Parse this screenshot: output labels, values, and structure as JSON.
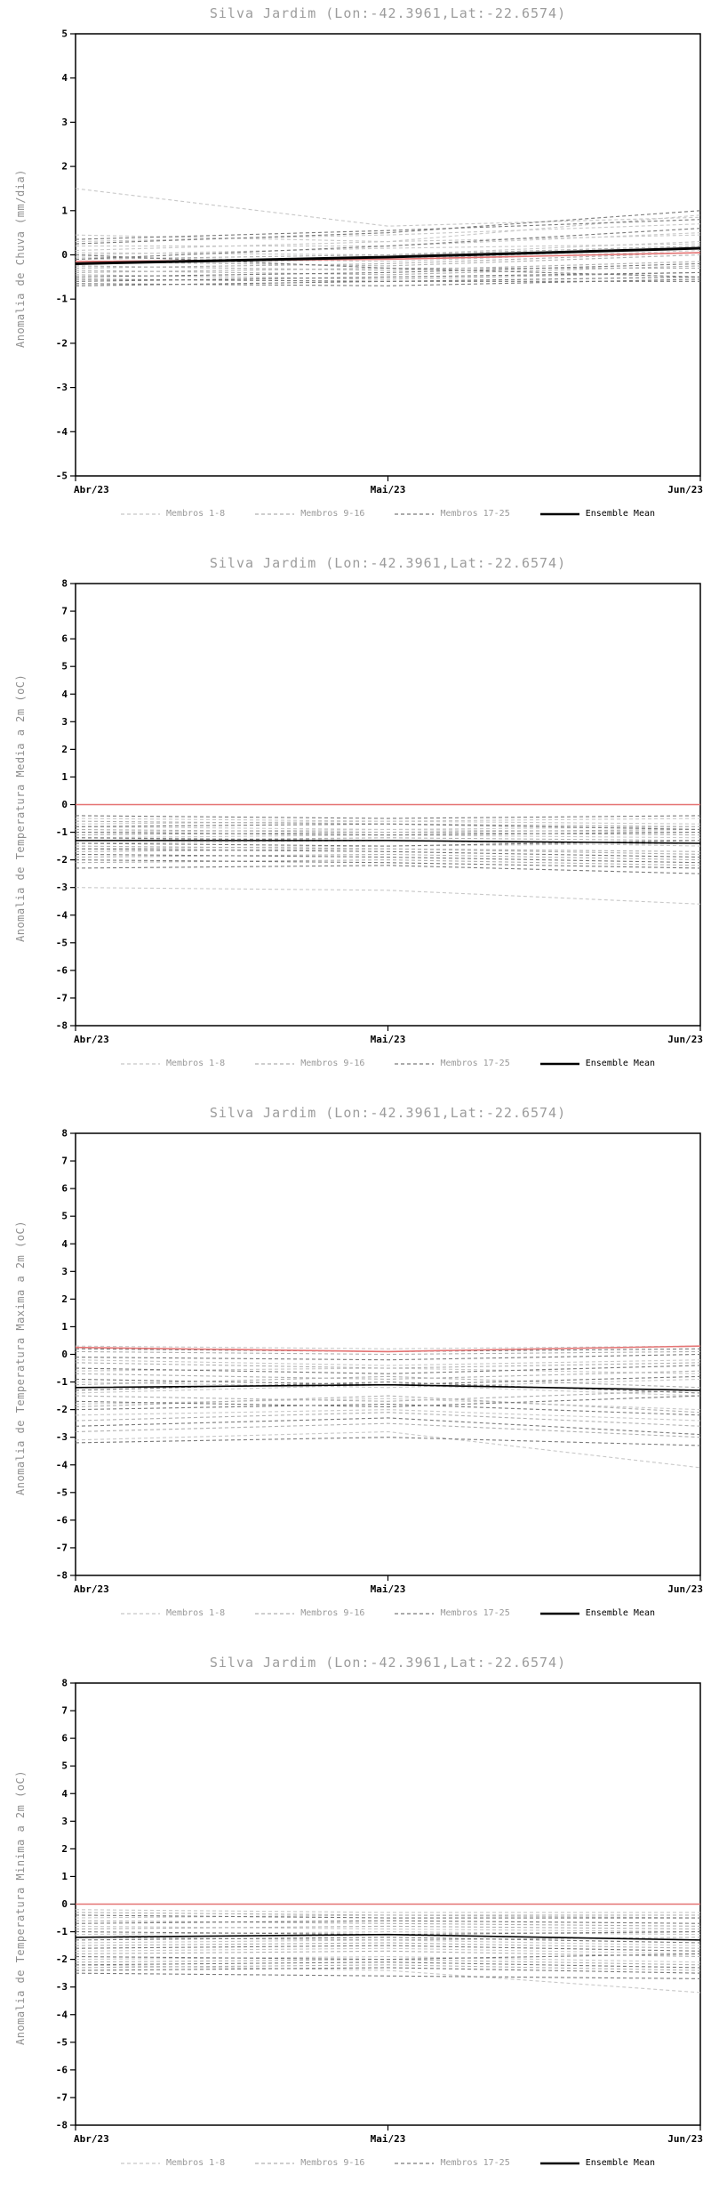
{
  "colors": {
    "title": "#9c9c9c",
    "ylabel": "#8f8f8f",
    "axis": "#000000",
    "group1": "#c8c8c8",
    "group2": "#b0b0b0",
    "group3": "#7a7a7a",
    "mean": "#000000",
    "red": "#e57373",
    "legend_member_text": "#9a9a9a",
    "legend_mean_text": "#000000"
  },
  "legend_styles": [
    {
      "color_key": "group1",
      "dashed": true
    },
    {
      "color_key": "group2",
      "dashed": true
    },
    {
      "color_key": "group3",
      "dashed": true
    },
    {
      "color_key": "mean",
      "dashed": false
    }
  ],
  "chart_data": [
    {
      "type": "line",
      "title": "Silva Jardim (Lon:-42.3961,Lat:-22.6574)",
      "ylabel": "Anomalia de Chuva (mm/dia)",
      "xlabel": "",
      "ylim": [
        -5,
        5
      ],
      "ytick_step": 1,
      "x_labels": [
        "Abr/23",
        "Mai/23",
        "Jun/23"
      ],
      "legend": [
        "Membros 1-8",
        "Membros 9-16",
        "Membros 17-25",
        "Ensemble Mean"
      ],
      "legend_position": "bottom",
      "grid": false,
      "mean_width": 3,
      "series": {
        "membros_1_8": [
          [
            1.5,
            0.65,
            0.85
          ],
          [
            0.45,
            0.3,
            0.9
          ],
          [
            0.3,
            0.45,
            0.7
          ],
          [
            0.2,
            0.2,
            0.5
          ],
          [
            0.1,
            0.3,
            0.45
          ],
          [
            0.05,
            0.0,
            0.3
          ],
          [
            0.0,
            0.15,
            0.25
          ],
          [
            -0.05,
            -0.15,
            0.1
          ]
        ],
        "membros_9_16": [
          [
            -0.1,
            0.0,
            0.2
          ],
          [
            -0.15,
            -0.25,
            0.0
          ],
          [
            -0.2,
            -0.1,
            0.15
          ],
          [
            -0.25,
            -0.35,
            -0.15
          ],
          [
            -0.3,
            -0.2,
            0.05
          ],
          [
            -0.35,
            -0.45,
            -0.25
          ],
          [
            -0.4,
            -0.3,
            -0.3
          ],
          [
            -0.45,
            -0.55,
            -0.4
          ]
        ],
        "membros_17_25": [
          [
            0.25,
            0.5,
            1.0
          ],
          [
            0.35,
            0.55,
            0.8
          ],
          [
            -0.1,
            0.2,
            0.6
          ],
          [
            -0.5,
            -0.4,
            -0.2
          ],
          [
            -0.55,
            -0.6,
            -0.5
          ],
          [
            -0.6,
            -0.5,
            -0.4
          ],
          [
            -0.65,
            -0.7,
            -0.55
          ],
          [
            -0.7,
            -0.6,
            -0.6
          ],
          [
            0.0,
            -0.3,
            -0.5
          ]
        ],
        "ensemble_mean": [
          -0.2,
          -0.05,
          0.15
        ],
        "reference_red": [
          -0.15,
          -0.1,
          0.05
        ]
      }
    },
    {
      "type": "line",
      "title": "Silva Jardim (Lon:-42.3961,Lat:-22.6574)",
      "ylabel": "Anomalia de Temperatura Media a 2m (oC)",
      "xlabel": "",
      "ylim": [
        -8,
        8
      ],
      "ytick_step": 1,
      "x_labels": [
        "Abr/23",
        "Mai/23",
        "Jun/23"
      ],
      "legend": [
        "Membros 1-8",
        "Membros 9-16",
        "Membros 17-25",
        "Ensemble Mean"
      ],
      "legend_position": "bottom",
      "grid": false,
      "mean_width": 1.6,
      "series": {
        "membros_1_8": [
          [
            -0.5,
            -0.6,
            -0.5
          ],
          [
            -0.7,
            -0.6,
            -0.7
          ],
          [
            -0.8,
            -0.9,
            -1.0
          ],
          [
            -1.0,
            -0.9,
            -0.8
          ],
          [
            -1.2,
            -1.1,
            -1.2
          ],
          [
            -1.4,
            -1.3,
            -1.5
          ],
          [
            -1.6,
            -1.5,
            -1.4
          ],
          [
            -3.0,
            -3.1,
            -3.6
          ]
        ],
        "membros_9_16": [
          [
            -0.6,
            -0.7,
            -0.8
          ],
          [
            -0.9,
            -1.0,
            -0.9
          ],
          [
            -1.1,
            -1.0,
            -1.1
          ],
          [
            -1.3,
            -1.2,
            -1.3
          ],
          [
            -1.5,
            -1.6,
            -1.7
          ],
          [
            -1.7,
            -1.6,
            -1.8
          ],
          [
            -1.9,
            -1.8,
            -2.0
          ],
          [
            -2.1,
            -2.0,
            -2.2
          ]
        ],
        "membros_17_25": [
          [
            -0.4,
            -0.5,
            -0.4
          ],
          [
            -0.8,
            -0.7,
            -0.9
          ],
          [
            -1.0,
            -1.1,
            -1.0
          ],
          [
            -1.2,
            -1.3,
            -1.4
          ],
          [
            -1.4,
            -1.5,
            -1.3
          ],
          [
            -1.6,
            -1.7,
            -1.9
          ],
          [
            -1.8,
            -1.9,
            -2.1
          ],
          [
            -2.0,
            -2.1,
            -2.3
          ],
          [
            -2.3,
            -2.2,
            -2.5
          ]
        ],
        "ensemble_mean": [
          -1.3,
          -1.3,
          -1.4
        ],
        "reference_red": [
          0,
          0,
          0
        ]
      }
    },
    {
      "type": "line",
      "title": "Silva Jardim (Lon:-42.3961,Lat:-22.6574)",
      "ylabel": "Anomalia de Temperatura Maxima a 2m (oC)",
      "xlabel": "",
      "ylim": [
        -8,
        8
      ],
      "ytick_step": 1,
      "x_labels": [
        "Abr/23",
        "Mai/23",
        "Jun/23"
      ],
      "legend": [
        "Membros 1-8",
        "Membros 9-16",
        "Membros 17-25",
        "Ensemble Mean"
      ],
      "legend_position": "bottom",
      "grid": false,
      "mean_width": 1.6,
      "series": {
        "membros_1_8": [
          [
            0.3,
            0.2,
            0.3
          ],
          [
            -0.2,
            -0.4,
            -0.2
          ],
          [
            -0.6,
            -0.5,
            -0.7
          ],
          [
            -1.0,
            -1.2,
            -0.9
          ],
          [
            -1.4,
            -1.1,
            -1.5
          ],
          [
            -1.8,
            -1.6,
            -2.0
          ],
          [
            -2.2,
            -2.0,
            -2.4
          ],
          [
            -3.1,
            -2.8,
            -4.1
          ]
        ],
        "membros_9_16": [
          [
            0.1,
            0.0,
            0.1
          ],
          [
            -0.3,
            -0.5,
            -0.3
          ],
          [
            -0.7,
            -0.9,
            -0.6
          ],
          [
            -1.1,
            -0.8,
            -1.2
          ],
          [
            -1.5,
            -1.7,
            -1.3
          ],
          [
            -1.9,
            -1.5,
            -2.1
          ],
          [
            -2.4,
            -2.1,
            -2.6
          ],
          [
            -2.8,
            -2.5,
            -3.0
          ]
        ],
        "membros_17_25": [
          [
            0.2,
            0.1,
            0.2
          ],
          [
            -0.1,
            -0.2,
            0.0
          ],
          [
            -0.5,
            -0.7,
            -0.4
          ],
          [
            -0.9,
            -1.1,
            -0.8
          ],
          [
            -1.3,
            -1.0,
            -1.4
          ],
          [
            -1.7,
            -1.9,
            -1.5
          ],
          [
            -2.0,
            -1.8,
            -2.2
          ],
          [
            -2.6,
            -2.3,
            -2.9
          ],
          [
            -3.2,
            -3.0,
            -3.3
          ]
        ],
        "ensemble_mean": [
          -1.2,
          -1.1,
          -1.3
        ],
        "reference_red": [
          0.25,
          0.1,
          0.3
        ]
      }
    },
    {
      "type": "line",
      "title": "Silva Jardim (Lon:-42.3961,Lat:-22.6574)",
      "ylabel": "Anomalia de Temperatura Minima a 2m (oC)",
      "xlabel": "",
      "ylim": [
        -8,
        8
      ],
      "ytick_step": 1,
      "x_labels": [
        "Abr/23",
        "Mai/23",
        "Jun/23"
      ],
      "legend": [
        "Membros 1-8",
        "Membros 9-16",
        "Membros 17-25",
        "Ensemble Mean"
      ],
      "legend_position": "bottom",
      "grid": false,
      "mean_width": 1.6,
      "series": {
        "membros_1_8": [
          [
            -0.2,
            -0.3,
            -0.3
          ],
          [
            -0.5,
            -0.4,
            -0.5
          ],
          [
            -0.8,
            -0.9,
            -1.0
          ],
          [
            -1.1,
            -1.0,
            -1.1
          ],
          [
            -1.4,
            -1.3,
            -1.5
          ],
          [
            -1.7,
            -1.6,
            -1.8
          ],
          [
            -2.0,
            -1.9,
            -2.1
          ],
          [
            -2.2,
            -2.4,
            -3.2
          ]
        ],
        "membros_9_16": [
          [
            -0.3,
            -0.4,
            -0.4
          ],
          [
            -0.6,
            -0.7,
            -0.8
          ],
          [
            -0.9,
            -0.8,
            -0.9
          ],
          [
            -1.2,
            -1.3,
            -1.2
          ],
          [
            -1.5,
            -1.4,
            -1.6
          ],
          [
            -1.8,
            -1.7,
            -1.9
          ],
          [
            -2.1,
            -2.0,
            -2.2
          ],
          [
            -2.3,
            -2.2,
            -2.4
          ]
        ],
        "membros_17_25": [
          [
            -0.4,
            -0.5,
            -0.5
          ],
          [
            -0.7,
            -0.6,
            -0.7
          ],
          [
            -1.0,
            -1.1,
            -1.0
          ],
          [
            -1.3,
            -1.2,
            -1.4
          ],
          [
            -1.6,
            -1.5,
            -1.7
          ],
          [
            -1.9,
            -2.0,
            -1.8
          ],
          [
            -2.2,
            -2.1,
            -2.3
          ],
          [
            -2.4,
            -2.3,
            -2.5
          ],
          [
            -2.5,
            -2.6,
            -2.7
          ]
        ],
        "ensemble_mean": [
          -1.2,
          -1.1,
          -1.3
        ],
        "reference_red": [
          0,
          0,
          0
        ]
      }
    }
  ]
}
